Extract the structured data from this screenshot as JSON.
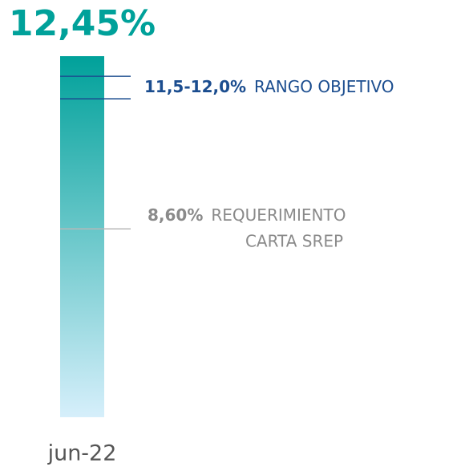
{
  "chart_data": {
    "type": "bar",
    "categories": [
      "jun-22"
    ],
    "values": [
      12.45
    ],
    "value_labels": [
      "12,45%"
    ],
    "color": "#00a19a",
    "color_end": "#d6effb",
    "ylim": [
      4.4,
      12.45
    ],
    "annotations": [
      {
        "values": [
          11.5,
          12.0
        ],
        "label": "11,5-12,0%",
        "text": [
          "RANGO OBJETIVO"
        ],
        "color": "#1b4d8f"
      },
      {
        "values": [
          8.6
        ],
        "label": "8,60%",
        "text": [
          "REQUERIMIENTO",
          "CARTA SREP"
        ],
        "color": "#b8b8b8"
      }
    ]
  }
}
